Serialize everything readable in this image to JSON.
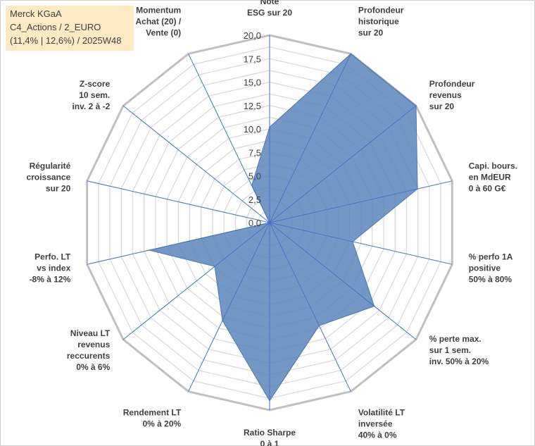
{
  "info_box": {
    "line1": "Merck KGaA",
    "line2": "C4_Actions / 2_EURO",
    "line3": "(11,4% | 12,6%) / 2025W48"
  },
  "chart_data": {
    "type": "radar",
    "title": "Merck KGaA",
    "rlim": [
      0,
      20
    ],
    "rticks": [
      "0,0",
      "2,5",
      "5,0",
      "7,5",
      "10,0",
      "12,5",
      "15,0",
      "17,5",
      "20,0"
    ],
    "categories": [
      [
        "Note",
        "ESG sur 20"
      ],
      [
        "Profondeur",
        "historique",
        "sur 20"
      ],
      [
        "Profondeur",
        "revenus",
        "sur 20"
      ],
      [
        "Capi. bours.",
        "en MdEUR",
        "0 à 60 G€"
      ],
      [
        "% perfo 1A",
        "positive",
        "50% à 80%"
      ],
      [
        "% perte max.",
        "sur 1 sem.",
        "inv. 50% à 20%"
      ],
      [
        "Volatilité LT",
        "inversée",
        "40% à 0%"
      ],
      [
        "Ratio Sharpe",
        "0 à 1"
      ],
      [
        "Rendement LT",
        "0% à 20%"
      ],
      [
        "Niveau LT",
        "revenus",
        "reccurents",
        "0% à 6%"
      ],
      [
        "Perfo. LT",
        "vs index",
        "-8% à 12%"
      ],
      [
        "Régularité",
        "croissance",
        "sur 20"
      ],
      [
        "Z-score",
        "10 sem.",
        "inv. 2 à -2"
      ],
      [
        "Momentum",
        "Achat (20) /",
        "Vente (0)"
      ]
    ],
    "series": [
      {
        "name": "Merck KGaA",
        "values": [
          10.2,
          20.0,
          20.0,
          16.2,
          9.1,
          14.3,
          12.2,
          19.0,
          11.6,
          7.5,
          13.2,
          0.0,
          0.0,
          4.4
        ]
      }
    ],
    "colors": {
      "fill": "#5c86bb",
      "stroke": "#4f76a8",
      "grid": "#d9d9d9",
      "outer": "#bfbfbf",
      "axis": "#4472c4"
    }
  }
}
